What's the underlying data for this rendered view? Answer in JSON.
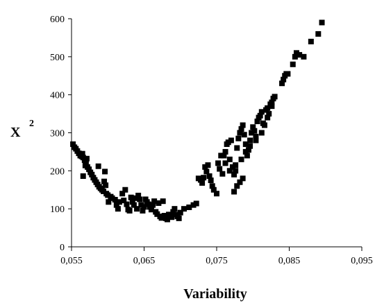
{
  "chart_data": {
    "type": "scatter",
    "title": "",
    "xlabel": "Variability",
    "ylabel_main": "X",
    "ylabel_sup": "2",
    "xlim": [
      0.055,
      0.095
    ],
    "ylim": [
      0,
      600
    ],
    "x_ticks": [
      0.055,
      0.065,
      0.075,
      0.085,
      0.095
    ],
    "x_tick_labels": [
      "0,055",
      "0,065",
      "0,075",
      "0,085",
      "0,095"
    ],
    "y_ticks": [
      0,
      100,
      200,
      300,
      400,
      500,
      600
    ],
    "y_tick_labels": [
      "0",
      "100",
      "200",
      "300",
      "400",
      "500",
      "600"
    ],
    "grid": false,
    "legend": "none",
    "marker_color": "#000000",
    "marker_shape": "square",
    "points": [
      [
        0.0552,
        270
      ],
      [
        0.0554,
        262
      ],
      [
        0.0556,
        258
      ],
      [
        0.0558,
        252
      ],
      [
        0.056,
        246
      ],
      [
        0.0562,
        240
      ],
      [
        0.0564,
        238
      ],
      [
        0.0566,
        235
      ],
      [
        0.0568,
        228
      ],
      [
        0.057,
        222
      ],
      [
        0.0565,
        245
      ],
      [
        0.0571,
        232
      ],
      [
        0.0569,
        214
      ],
      [
        0.0572,
        210
      ],
      [
        0.0574,
        204
      ],
      [
        0.0576,
        196
      ],
      [
        0.0578,
        190
      ],
      [
        0.0566,
        186
      ],
      [
        0.058,
        182
      ],
      [
        0.0582,
        176
      ],
      [
        0.0584,
        170
      ],
      [
        0.0586,
        164
      ],
      [
        0.0588,
        158
      ],
      [
        0.059,
        154
      ],
      [
        0.0587,
        212
      ],
      [
        0.0592,
        150
      ],
      [
        0.0594,
        146
      ],
      [
        0.0596,
        198
      ],
      [
        0.0598,
        140
      ],
      [
        0.06,
        136
      ],
      [
        0.0595,
        172
      ],
      [
        0.0597,
        162
      ],
      [
        0.0601,
        118
      ],
      [
        0.0604,
        132
      ],
      [
        0.0606,
        128
      ],
      [
        0.061,
        124
      ],
      [
        0.0612,
        110
      ],
      [
        0.0614,
        100
      ],
      [
        0.0616,
        118
      ],
      [
        0.062,
        140
      ],
      [
        0.0622,
        122
      ],
      [
        0.0624,
        150
      ],
      [
        0.0626,
        112
      ],
      [
        0.0628,
        98
      ],
      [
        0.063,
        95
      ],
      [
        0.0632,
        130
      ],
      [
        0.0634,
        118
      ],
      [
        0.0636,
        110
      ],
      [
        0.0638,
        128
      ],
      [
        0.064,
        100
      ],
      [
        0.0642,
        135
      ],
      [
        0.0644,
        125
      ],
      [
        0.0646,
        110
      ],
      [
        0.0648,
        95
      ],
      [
        0.065,
        105
      ],
      [
        0.0652,
        125
      ],
      [
        0.0654,
        118
      ],
      [
        0.0656,
        112
      ],
      [
        0.0658,
        105
      ],
      [
        0.066,
        98
      ],
      [
        0.0662,
        110
      ],
      [
        0.0664,
        120
      ],
      [
        0.0666,
        92
      ],
      [
        0.0668,
        86
      ],
      [
        0.067,
        115
      ],
      [
        0.0672,
        80
      ],
      [
        0.0674,
        76
      ],
      [
        0.0676,
        120
      ],
      [
        0.0678,
        82
      ],
      [
        0.068,
        75
      ],
      [
        0.0682,
        72
      ],
      [
        0.0684,
        85
      ],
      [
        0.0686,
        80
      ],
      [
        0.0688,
        78
      ],
      [
        0.069,
        92
      ],
      [
        0.0692,
        100
      ],
      [
        0.0694,
        85
      ],
      [
        0.0696,
        80
      ],
      [
        0.0698,
        75
      ],
      [
        0.07,
        90
      ],
      [
        0.0705,
        100
      ],
      [
        0.0712,
        104
      ],
      [
        0.0718,
        110
      ],
      [
        0.0722,
        114
      ],
      [
        0.0725,
        180
      ],
      [
        0.0728,
        176
      ],
      [
        0.073,
        168
      ],
      [
        0.0732,
        182
      ],
      [
        0.0734,
        210
      ],
      [
        0.0736,
        198
      ],
      [
        0.0738,
        215
      ],
      [
        0.074,
        186
      ],
      [
        0.0742,
        175
      ],
      [
        0.0744,
        160
      ],
      [
        0.0746,
        150
      ],
      [
        0.075,
        140
      ],
      [
        0.0752,
        220
      ],
      [
        0.0754,
        205
      ],
      [
        0.0756,
        240
      ],
      [
        0.0758,
        192
      ],
      [
        0.076,
        240
      ],
      [
        0.0762,
        250
      ],
      [
        0.0764,
        270
      ],
      [
        0.0766,
        275
      ],
      [
        0.0768,
        230
      ],
      [
        0.077,
        280
      ],
      [
        0.0772,
        210
      ],
      [
        0.0774,
        190
      ],
      [
        0.0776,
        200
      ],
      [
        0.0778,
        260
      ],
      [
        0.078,
        285
      ],
      [
        0.0782,
        300
      ],
      [
        0.0784,
        310
      ],
      [
        0.0786,
        320
      ],
      [
        0.0788,
        295
      ],
      [
        0.079,
        270
      ],
      [
        0.0792,
        240
      ],
      [
        0.0794,
        255
      ],
      [
        0.0796,
        280
      ],
      [
        0.0798,
        300
      ],
      [
        0.08,
        315
      ],
      [
        0.0802,
        305
      ],
      [
        0.0804,
        290
      ],
      [
        0.0806,
        330
      ],
      [
        0.0808,
        340
      ],
      [
        0.081,
        345
      ],
      [
        0.0812,
        355
      ],
      [
        0.0814,
        325
      ],
      [
        0.0816,
        320
      ],
      [
        0.0818,
        360
      ],
      [
        0.082,
        365
      ],
      [
        0.0822,
        350
      ],
      [
        0.0824,
        375
      ],
      [
        0.0826,
        380
      ],
      [
        0.0828,
        390
      ],
      [
        0.084,
        430
      ],
      [
        0.0842,
        440
      ],
      [
        0.0844,
        450
      ],
      [
        0.0846,
        455
      ],
      [
        0.0848,
        455
      ],
      [
        0.0855,
        480
      ],
      [
        0.0858,
        500
      ],
      [
        0.086,
        510
      ],
      [
        0.0864,
        505
      ],
      [
        0.087,
        500
      ],
      [
        0.088,
        540
      ],
      [
        0.089,
        560
      ],
      [
        0.0895,
        590
      ],
      [
        0.0774,
        145
      ],
      [
        0.0778,
        160
      ],
      [
        0.0782,
        170
      ],
      [
        0.0786,
        180
      ],
      [
        0.0762,
        220
      ],
      [
        0.0768,
        200
      ],
      [
        0.0776,
        215
      ],
      [
        0.0784,
        230
      ],
      [
        0.079,
        250
      ],
      [
        0.0796,
        265
      ],
      [
        0.0804,
        280
      ],
      [
        0.0812,
        300
      ],
      [
        0.082,
        340
      ],
      [
        0.0826,
        370
      ],
      [
        0.083,
        395
      ]
    ]
  }
}
